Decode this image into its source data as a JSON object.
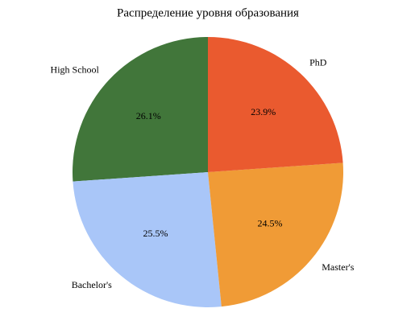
{
  "chart_data": {
    "type": "pie",
    "title": "Распределение уровня образования",
    "categories": [
      "High School",
      "Bachelor's",
      "Master's",
      "PhD"
    ],
    "values": [
      26.1,
      25.5,
      24.5,
      23.9
    ],
    "value_labels": [
      "26.1%",
      "25.5%",
      "24.5%",
      "23.9%"
    ],
    "colors": [
      "#41763a",
      "#a9c6f8",
      "#f09b36",
      "#ea5a2f"
    ]
  }
}
